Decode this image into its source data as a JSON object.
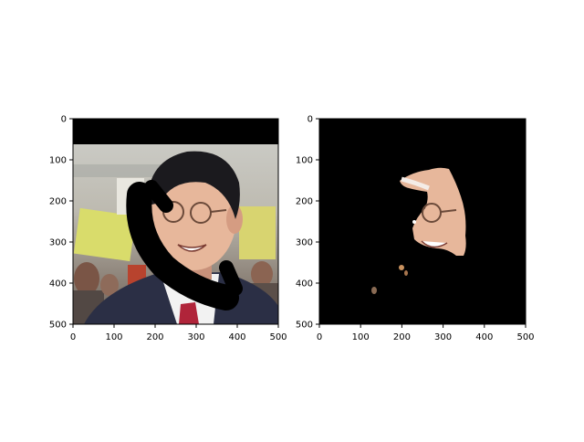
{
  "figure": {
    "panels": [
      {
        "name": "masked-input-image",
        "xticks": [
          "0",
          "100",
          "200",
          "300",
          "400",
          "500"
        ],
        "yticks": [
          "0",
          "100",
          "200",
          "300",
          "400",
          "500"
        ],
        "content": "photo of a smiling man in glasses and suit with red tie; black bar at top and black curved occlusion stroke across face"
      },
      {
        "name": "segmented-face-output",
        "xticks": [
          "0",
          "100",
          "200",
          "300",
          "400",
          "500"
        ],
        "yticks": [
          "0",
          "100",
          "200",
          "300",
          "400",
          "500"
        ],
        "content": "black background with extracted skin-region of the face, minus the occluded stroke"
      }
    ]
  },
  "colors": {
    "background": "#ffffff",
    "axes_frame": "#000000",
    "mask": "#000000",
    "suit": "#2b2f45",
    "tie": "#b0243a",
    "skin": "#e7b79b",
    "hair": "#1b1a1e",
    "sign_yellow": "#d9dc6b"
  }
}
